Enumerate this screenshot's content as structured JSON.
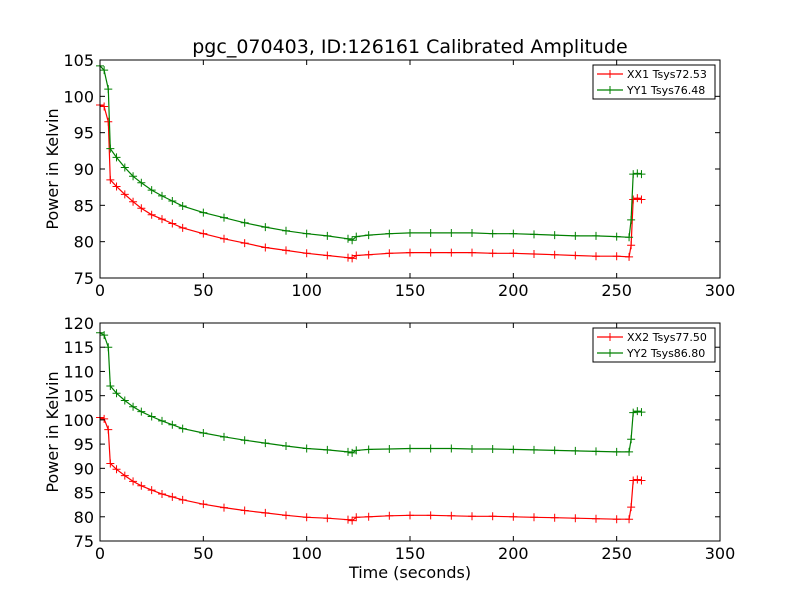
{
  "chart_data": [
    {
      "type": "line",
      "title": "pgc_070403, ID:126161 Calibrated Amplitude",
      "xlabel": "",
      "ylabel": "Power in Kelvin",
      "xlim": [
        0,
        300
      ],
      "ylim": [
        75,
        105
      ],
      "xticks": [
        "0",
        "50",
        "100",
        "150",
        "200",
        "250",
        "300"
      ],
      "yticks": [
        "75",
        "80",
        "85",
        "90",
        "95",
        "100",
        "105"
      ],
      "legend_position": "top-right",
      "series": [
        {
          "name": "XX1 Tsys72.53",
          "color": "#ff0000",
          "points": [
            [
              0,
              98.8
            ],
            [
              2,
              98.6
            ],
            [
              4,
              96.5
            ],
            [
              5,
              88.5
            ],
            [
              8,
              87.6
            ],
            [
              12,
              86.5
            ],
            [
              16,
              85.5
            ],
            [
              20,
              84.6
            ],
            [
              25,
              83.7
            ],
            [
              30,
              83.1
            ],
            [
              35,
              82.5
            ],
            [
              40,
              81.9
            ],
            [
              50,
              81.1
            ],
            [
              60,
              80.4
            ],
            [
              70,
              79.8
            ],
            [
              80,
              79.2
            ],
            [
              90,
              78.8
            ],
            [
              100,
              78.4
            ],
            [
              110,
              78.1
            ],
            [
              120,
              77.8
            ],
            [
              122,
              77.7
            ],
            [
              124,
              78.1
            ],
            [
              130,
              78.2
            ],
            [
              140,
              78.4
            ],
            [
              150,
              78.5
            ],
            [
              160,
              78.5
            ],
            [
              170,
              78.5
            ],
            [
              180,
              78.5
            ],
            [
              190,
              78.4
            ],
            [
              200,
              78.4
            ],
            [
              210,
              78.3
            ],
            [
              220,
              78.2
            ],
            [
              230,
              78.1
            ],
            [
              240,
              78.0
            ],
            [
              250,
              78.0
            ],
            [
              256,
              77.9
            ],
            [
              257,
              79.5
            ],
            [
              258,
              85.8
            ],
            [
              260,
              86.0
            ],
            [
              262,
              85.8
            ]
          ]
        },
        {
          "name": "YY1 Tsys76.48",
          "color": "#008000",
          "points": [
            [
              0,
              104.2
            ],
            [
              2,
              103.6
            ],
            [
              4,
              101.0
            ],
            [
              5,
              92.8
            ],
            [
              8,
              91.6
            ],
            [
              12,
              90.2
            ],
            [
              16,
              89.0
            ],
            [
              20,
              88.1
            ],
            [
              25,
              87.1
            ],
            [
              30,
              86.3
            ],
            [
              35,
              85.6
            ],
            [
              40,
              84.9
            ],
            [
              50,
              84.0
            ],
            [
              60,
              83.3
            ],
            [
              70,
              82.6
            ],
            [
              80,
              82.0
            ],
            [
              90,
              81.5
            ],
            [
              100,
              81.1
            ],
            [
              110,
              80.8
            ],
            [
              120,
              80.4
            ],
            [
              122,
              80.2
            ],
            [
              124,
              80.7
            ],
            [
              130,
              80.9
            ],
            [
              140,
              81.1
            ],
            [
              150,
              81.2
            ],
            [
              160,
              81.2
            ],
            [
              170,
              81.2
            ],
            [
              180,
              81.2
            ],
            [
              190,
              81.1
            ],
            [
              200,
              81.1
            ],
            [
              210,
              81.0
            ],
            [
              220,
              80.9
            ],
            [
              230,
              80.8
            ],
            [
              240,
              80.8
            ],
            [
              250,
              80.7
            ],
            [
              256,
              80.6
            ],
            [
              257,
              83.0
            ],
            [
              258,
              89.3
            ],
            [
              260,
              89.4
            ],
            [
              262,
              89.3
            ]
          ]
        }
      ]
    },
    {
      "type": "line",
      "title": "",
      "xlabel": "Time (seconds)",
      "ylabel": "Power in Kelvin",
      "xlim": [
        0,
        300
      ],
      "ylim": [
        75,
        120
      ],
      "xticks": [
        "0",
        "50",
        "100",
        "150",
        "200",
        "250",
        "300"
      ],
      "yticks": [
        "75",
        "80",
        "85",
        "90",
        "95",
        "100",
        "105",
        "110",
        "115",
        "120"
      ],
      "legend_position": "top-right",
      "series": [
        {
          "name": "XX2 Tsys77.50",
          "color": "#ff0000",
          "points": [
            [
              0,
              100.5
            ],
            [
              2,
              100.2
            ],
            [
              4,
              98.0
            ],
            [
              5,
              91.0
            ],
            [
              8,
              89.8
            ],
            [
              12,
              88.5
            ],
            [
              16,
              87.3
            ],
            [
              20,
              86.4
            ],
            [
              25,
              85.5
            ],
            [
              30,
              84.7
            ],
            [
              35,
              84.1
            ],
            [
              40,
              83.5
            ],
            [
              50,
              82.6
            ],
            [
              60,
              81.9
            ],
            [
              70,
              81.3
            ],
            [
              80,
              80.8
            ],
            [
              90,
              80.3
            ],
            [
              100,
              79.9
            ],
            [
              110,
              79.7
            ],
            [
              120,
              79.4
            ],
            [
              122,
              79.2
            ],
            [
              124,
              79.9
            ],
            [
              130,
              80.0
            ],
            [
              140,
              80.2
            ],
            [
              150,
              80.3
            ],
            [
              160,
              80.3
            ],
            [
              170,
              80.2
            ],
            [
              180,
              80.1
            ],
            [
              190,
              80.1
            ],
            [
              200,
              80.0
            ],
            [
              210,
              79.9
            ],
            [
              220,
              79.8
            ],
            [
              230,
              79.7
            ],
            [
              240,
              79.6
            ],
            [
              250,
              79.5
            ],
            [
              256,
              79.5
            ],
            [
              257,
              82.0
            ],
            [
              258,
              87.5
            ],
            [
              260,
              87.7
            ],
            [
              262,
              87.5
            ]
          ]
        },
        {
          "name": "YY2 Tsys86.80",
          "color": "#008000",
          "points": [
            [
              0,
              118.0
            ],
            [
              2,
              117.5
            ],
            [
              4,
              115.0
            ],
            [
              5,
              107.0
            ],
            [
              8,
              105.5
            ],
            [
              12,
              104.0
            ],
            [
              16,
              102.7
            ],
            [
              20,
              101.7
            ],
            [
              25,
              100.7
            ],
            [
              30,
              99.8
            ],
            [
              35,
              99.0
            ],
            [
              40,
              98.2
            ],
            [
              50,
              97.3
            ],
            [
              60,
              96.5
            ],
            [
              70,
              95.8
            ],
            [
              80,
              95.2
            ],
            [
              90,
              94.6
            ],
            [
              100,
              94.1
            ],
            [
              110,
              93.8
            ],
            [
              120,
              93.4
            ],
            [
              122,
              93.2
            ],
            [
              124,
              93.7
            ],
            [
              130,
              93.9
            ],
            [
              140,
              94.0
            ],
            [
              150,
              94.1
            ],
            [
              160,
              94.1
            ],
            [
              170,
              94.1
            ],
            [
              180,
              94.0
            ],
            [
              190,
              94.0
            ],
            [
              200,
              93.9
            ],
            [
              210,
              93.8
            ],
            [
              220,
              93.7
            ],
            [
              230,
              93.6
            ],
            [
              240,
              93.5
            ],
            [
              250,
              93.4
            ],
            [
              256,
              93.4
            ],
            [
              257,
              96.0
            ],
            [
              258,
              101.5
            ],
            [
              260,
              101.8
            ],
            [
              262,
              101.6
            ]
          ]
        }
      ]
    }
  ]
}
